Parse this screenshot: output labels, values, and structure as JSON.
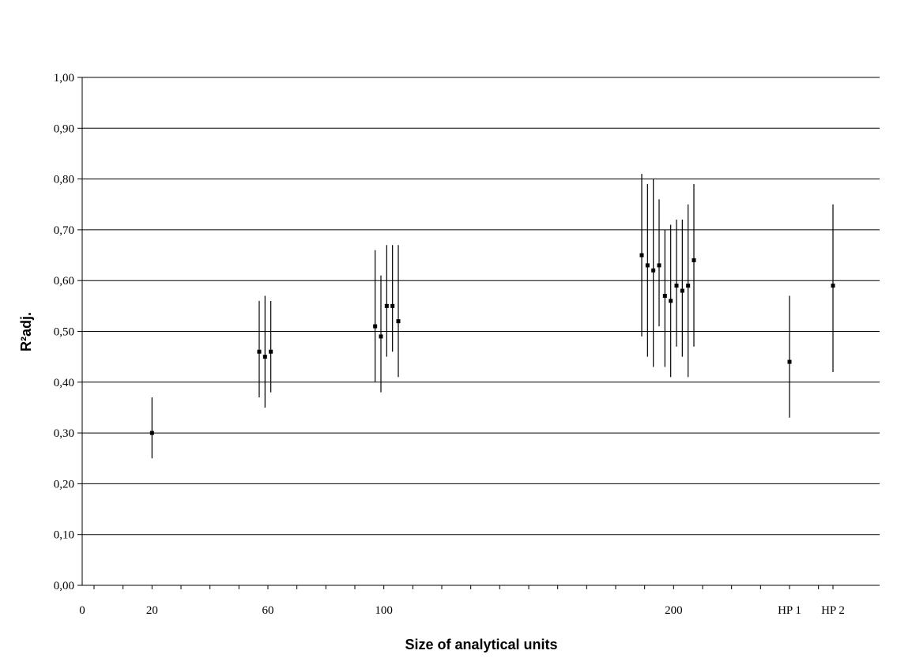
{
  "chart_data": {
    "type": "scatter",
    "title": "",
    "xlabel": "Size of analytical units",
    "ylabel": "R²adj.",
    "ylim": [
      0,
      1
    ],
    "xlim": [
      0,
      255
    ],
    "y_ticks": [
      0,
      0.1,
      0.2,
      0.3,
      0.4,
      0.5,
      0.6,
      0.7,
      0.8,
      0.9,
      1.0
    ],
    "y_tick_labels": [
      "0,00",
      "0,10",
      "0,20",
      "0,30",
      "0,40",
      "0,50",
      "0,60",
      "0,70",
      "0,80",
      "0,90",
      "1,00"
    ],
    "x_ticks": [
      0,
      20,
      60,
      100,
      200,
      240,
      255
    ],
    "x_tick_labels": [
      "0",
      "20",
      "60",
      "100",
      "200",
      "HP 1",
      "HP 2"
    ],
    "x_minor_ticks": [
      0,
      10,
      20,
      30,
      40,
      50,
      60,
      70,
      80,
      90,
      100,
      110,
      120,
      130,
      140,
      150,
      160,
      170,
      180,
      190,
      200,
      210,
      220,
      230,
      240,
      250,
      255
    ],
    "grid": "horizontal",
    "points": [
      {
        "x": 20,
        "y": 0.3,
        "lo": 0.25,
        "hi": 0.37
      },
      {
        "x": 57,
        "y": 0.46,
        "lo": 0.37,
        "hi": 0.56
      },
      {
        "x": 59,
        "y": 0.45,
        "lo": 0.35,
        "hi": 0.57
      },
      {
        "x": 61,
        "y": 0.46,
        "lo": 0.38,
        "hi": 0.56
      },
      {
        "x": 97,
        "y": 0.51,
        "lo": 0.4,
        "hi": 0.66
      },
      {
        "x": 99,
        "y": 0.49,
        "lo": 0.38,
        "hi": 0.61
      },
      {
        "x": 101,
        "y": 0.55,
        "lo": 0.45,
        "hi": 0.67
      },
      {
        "x": 103,
        "y": 0.55,
        "lo": 0.46,
        "hi": 0.67
      },
      {
        "x": 105,
        "y": 0.52,
        "lo": 0.41,
        "hi": 0.67
      },
      {
        "x": 189,
        "y": 0.65,
        "lo": 0.49,
        "hi": 0.81
      },
      {
        "x": 191,
        "y": 0.63,
        "lo": 0.45,
        "hi": 0.79
      },
      {
        "x": 193,
        "y": 0.62,
        "lo": 0.43,
        "hi": 0.8
      },
      {
        "x": 195,
        "y": 0.63,
        "lo": 0.51,
        "hi": 0.76
      },
      {
        "x": 197,
        "y": 0.57,
        "lo": 0.43,
        "hi": 0.7
      },
      {
        "x": 199,
        "y": 0.56,
        "lo": 0.41,
        "hi": 0.71
      },
      {
        "x": 201,
        "y": 0.59,
        "lo": 0.47,
        "hi": 0.72
      },
      {
        "x": 203,
        "y": 0.58,
        "lo": 0.45,
        "hi": 0.72
      },
      {
        "x": 205,
        "y": 0.59,
        "lo": 0.41,
        "hi": 0.75
      },
      {
        "x": 207,
        "y": 0.64,
        "lo": 0.47,
        "hi": 0.79
      },
      {
        "x": 240,
        "y": 0.44,
        "lo": 0.33,
        "hi": 0.57
      },
      {
        "x": 255,
        "y": 0.59,
        "lo": 0.42,
        "hi": 0.75
      }
    ]
  }
}
